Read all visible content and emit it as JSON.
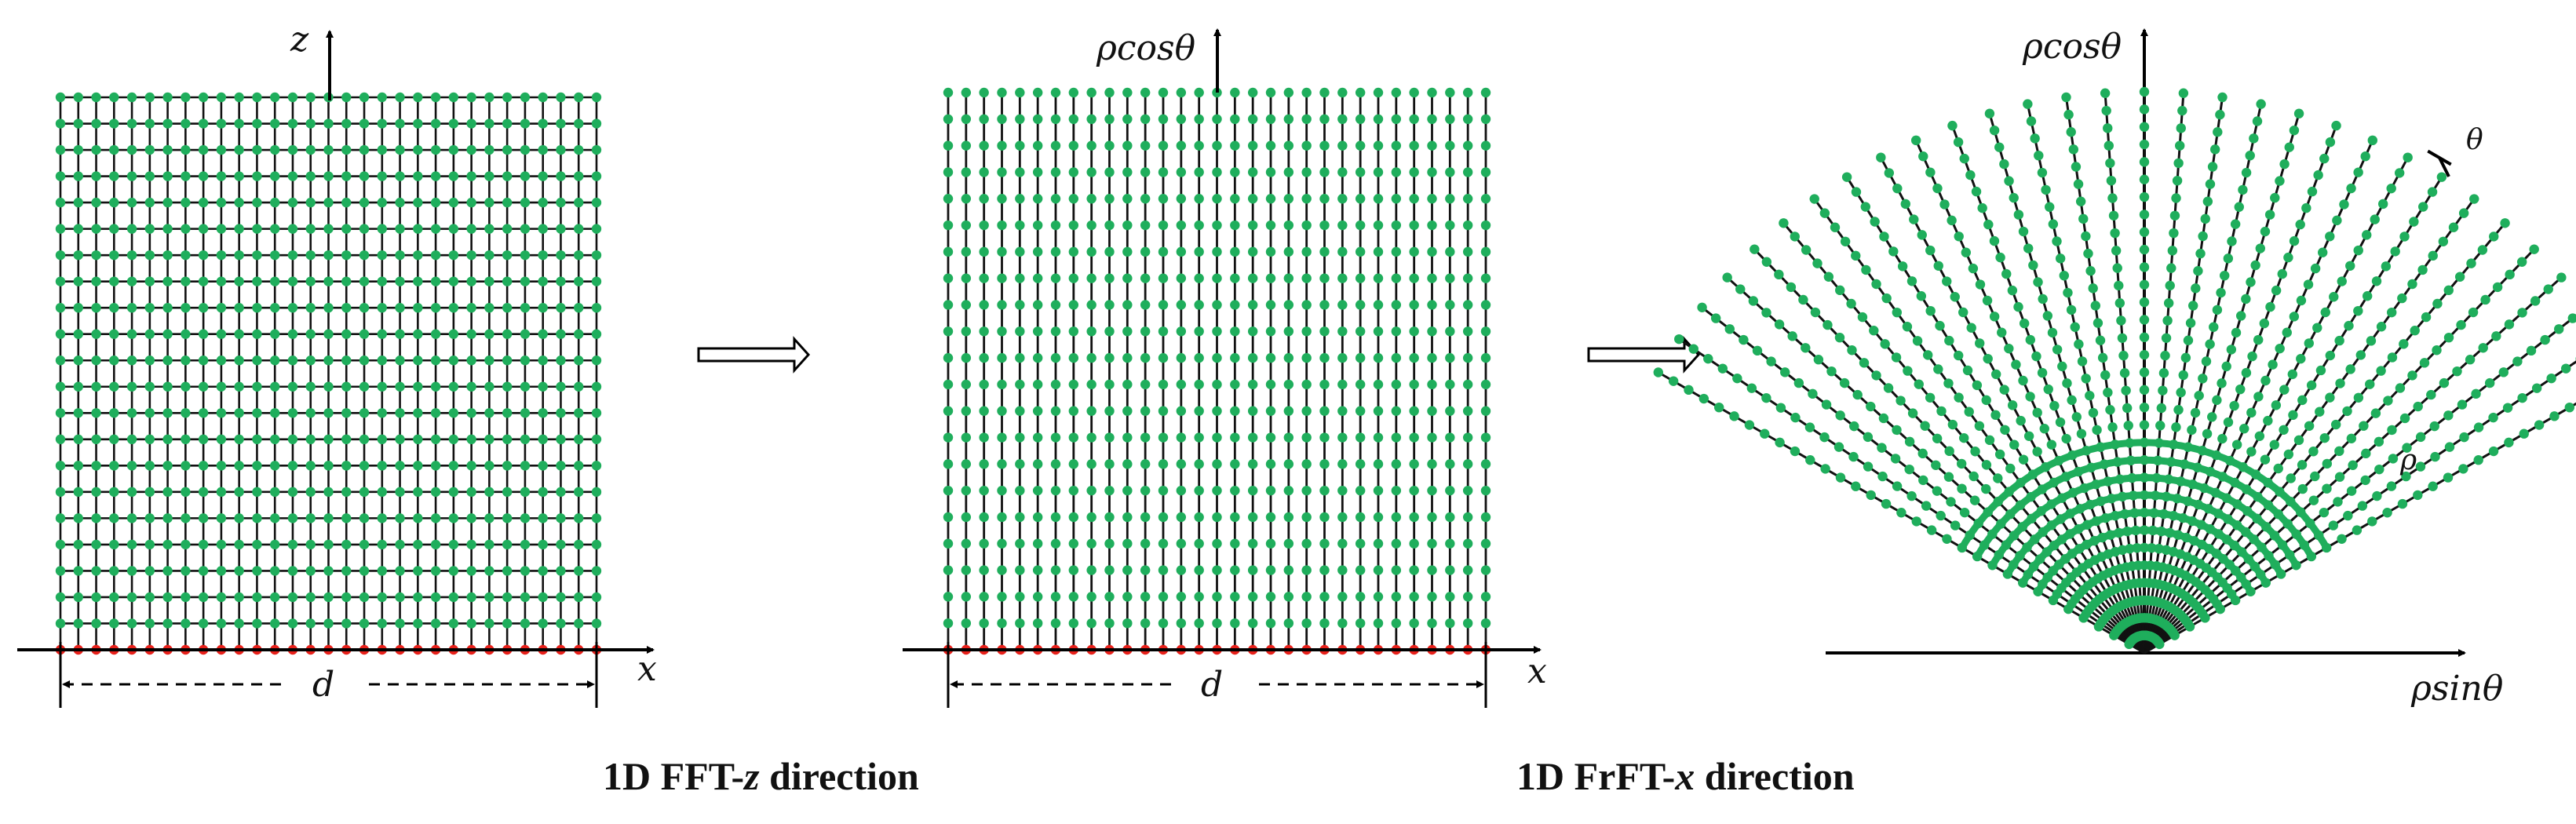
{
  "panels": [
    {
      "id": "cartesian",
      "vertical_axis_label": "z",
      "horizontal_axis_label": "x",
      "aperture_label": "d"
    },
    {
      "id": "mixed",
      "vertical_axis_label": "ρcosθ",
      "horizontal_axis_label": "x",
      "aperture_label": "d"
    },
    {
      "id": "polar",
      "vertical_axis_label": "ρcosθ",
      "horizontal_axis_label": "ρsinθ",
      "angle_label": "θ",
      "radius_label": "ρ"
    }
  ],
  "transforms": [
    {
      "caption_prefix": "1D FFT-",
      "caption_variable": "z",
      "caption_suffix": " direction"
    },
    {
      "caption_prefix": "1D FrFT-",
      "caption_variable": "x",
      "caption_suffix": " direction"
    }
  ],
  "colors": {
    "grid_line": "#111111",
    "sample_dot": "#1fae5c",
    "aperture_dot": "#e8211b",
    "axis": "#000000"
  }
}
